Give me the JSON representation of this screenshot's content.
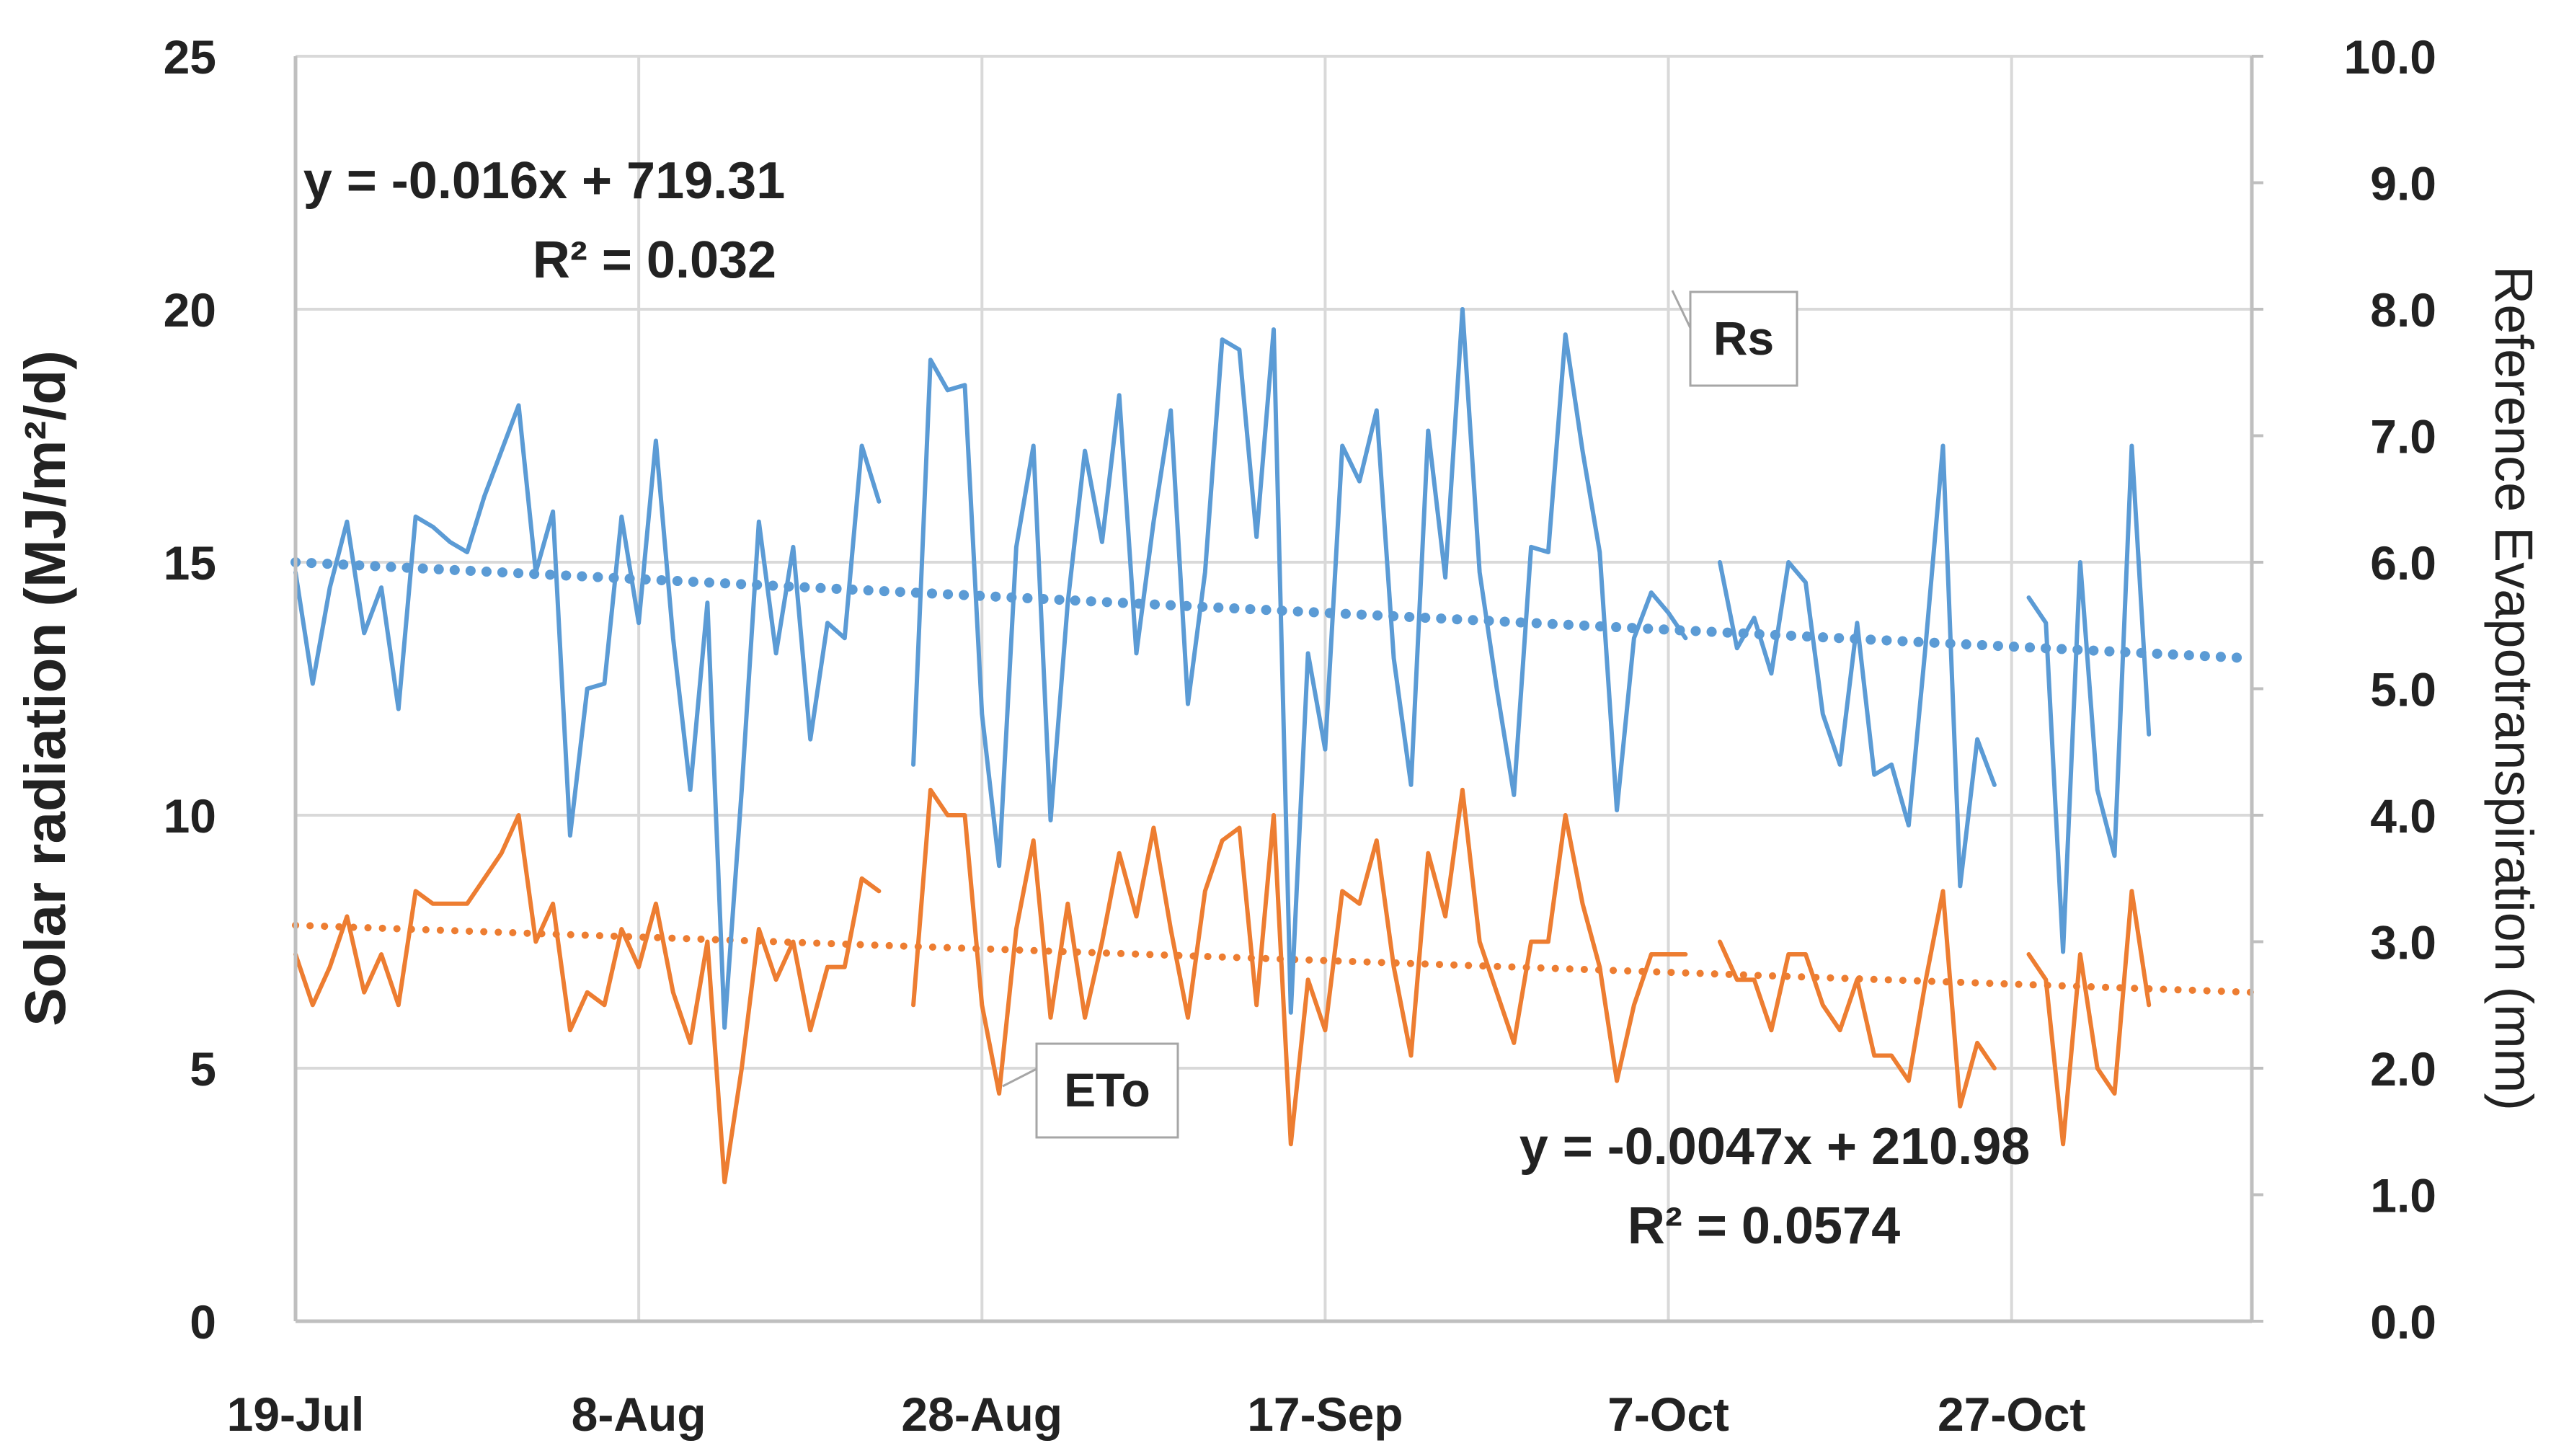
{
  "chart_data": {
    "type": "line",
    "x_ticks": [
      "19-Jul",
      "8-Aug",
      "28-Aug",
      "17-Sep",
      "7-Oct",
      "27-Oct"
    ],
    "x_range_days": [
      0,
      114
    ],
    "y_left": {
      "label": "Solar radiation (MJ/m²/d)",
      "range": [
        0,
        25
      ],
      "ticks": [
        "0",
        "5",
        "10",
        "15",
        "20",
        "25"
      ]
    },
    "y_right": {
      "label": "Reference Evapotranspiration (mm)",
      "range": [
        0,
        10
      ],
      "ticks": [
        "0.0",
        "1.0",
        "2.0",
        "3.0",
        "4.0",
        "5.0",
        "6.0",
        "7.0",
        "8.0",
        "9.0",
        "10.0"
      ]
    },
    "grid": true,
    "series": [
      {
        "name": "Rs",
        "axis": "left",
        "color": "#5b9bd5",
        "points": [
          [
            0,
            14.8
          ],
          [
            1,
            12.6
          ],
          [
            2,
            14.5
          ],
          [
            3,
            15.8
          ],
          [
            4,
            13.6
          ],
          [
            5,
            14.5
          ],
          [
            6,
            12.1
          ],
          [
            7,
            15.9
          ],
          [
            8,
            15.7
          ],
          [
            9,
            15.4
          ],
          [
            10,
            15.2
          ],
          [
            11,
            16.3
          ],
          [
            12,
            17.2
          ],
          [
            13,
            18.1
          ],
          [
            14,
            14.8
          ],
          [
            15,
            16.0
          ],
          [
            16,
            9.6
          ],
          [
            17,
            12.5
          ],
          [
            18,
            12.6
          ],
          [
            19,
            15.9
          ],
          [
            20,
            13.8
          ],
          [
            21,
            17.4
          ],
          [
            22,
            13.5
          ],
          [
            23,
            10.5
          ],
          [
            24,
            14.2
          ],
          [
            25,
            5.8
          ],
          [
            26,
            10.5
          ],
          [
            27,
            15.8
          ],
          [
            28,
            13.2
          ],
          [
            29,
            15.3
          ],
          [
            30,
            11.5
          ],
          [
            31,
            13.8
          ],
          [
            32,
            13.5
          ],
          [
            33,
            17.3
          ],
          [
            34,
            16.2
          ],
          null,
          [
            36,
            11.0
          ],
          [
            37,
            19.0
          ],
          [
            38,
            18.4
          ],
          [
            39,
            18.5
          ],
          [
            40,
            12.0
          ],
          [
            41,
            9.0
          ],
          [
            42,
            15.3
          ],
          [
            43,
            17.3
          ],
          [
            44,
            9.9
          ],
          [
            45,
            14.2
          ],
          [
            46,
            17.2
          ],
          [
            47,
            15.4
          ],
          [
            48,
            18.3
          ],
          [
            49,
            13.2
          ],
          [
            50,
            15.8
          ],
          [
            51,
            18.0
          ],
          [
            52,
            12.2
          ],
          [
            53,
            14.8
          ],
          [
            54,
            19.4
          ],
          [
            55,
            19.2
          ],
          [
            56,
            15.5
          ],
          [
            57,
            19.6
          ],
          [
            58,
            6.1
          ],
          [
            59,
            13.2
          ],
          [
            60,
            11.3
          ],
          [
            61,
            17.3
          ],
          [
            62,
            16.6
          ],
          [
            63,
            18.0
          ],
          [
            64,
            13.1
          ],
          [
            65,
            10.6
          ],
          [
            66,
            17.6
          ],
          [
            67,
            14.7
          ],
          [
            68,
            20.0
          ],
          [
            69,
            14.8
          ],
          [
            70,
            12.5
          ],
          [
            71,
            10.4
          ],
          [
            72,
            15.3
          ],
          [
            73,
            15.2
          ],
          [
            74,
            19.5
          ],
          [
            75,
            17.2
          ],
          [
            76,
            15.2
          ],
          [
            77,
            10.1
          ],
          [
            78,
            13.5
          ],
          [
            79,
            14.4
          ],
          [
            80,
            14.0
          ],
          [
            81,
            13.5
          ],
          null,
          [
            83,
            15.0
          ],
          [
            84,
            13.3
          ],
          [
            85,
            13.9
          ],
          [
            86,
            12.8
          ],
          [
            87,
            15.0
          ],
          [
            88,
            14.6
          ],
          [
            89,
            12.0
          ],
          [
            90,
            11.0
          ],
          [
            91,
            13.8
          ],
          [
            92,
            10.8
          ],
          [
            93,
            11.0
          ],
          [
            94,
            9.8
          ],
          [
            95,
            13.4
          ],
          [
            96,
            17.3
          ],
          [
            97,
            8.6
          ],
          [
            98,
            11.5
          ],
          [
            99,
            10.6
          ],
          null,
          [
            101,
            14.3
          ],
          [
            102,
            13.8
          ],
          [
            103,
            7.3
          ],
          [
            104,
            15.0
          ],
          [
            105,
            10.5
          ],
          [
            106,
            9.2
          ],
          [
            107,
            17.3
          ],
          [
            108,
            11.6
          ]
        ]
      },
      {
        "name": "ETo",
        "axis": "right",
        "color": "#ed7d31",
        "points": [
          [
            0,
            2.9
          ],
          [
            1,
            2.5
          ],
          [
            2,
            2.8
          ],
          [
            3,
            3.2
          ],
          [
            4,
            2.6
          ],
          [
            5,
            2.9
          ],
          [
            6,
            2.5
          ],
          [
            7,
            3.4
          ],
          [
            8,
            3.3
          ],
          [
            9,
            3.3
          ],
          [
            10,
            3.3
          ],
          [
            11,
            3.5
          ],
          [
            12,
            3.7
          ],
          [
            13,
            4.0
          ],
          [
            14,
            3.0
          ],
          [
            15,
            3.3
          ],
          [
            16,
            2.3
          ],
          [
            17,
            2.6
          ],
          [
            18,
            2.5
          ],
          [
            19,
            3.1
          ],
          [
            20,
            2.8
          ],
          [
            21,
            3.3
          ],
          [
            22,
            2.6
          ],
          [
            23,
            2.2
          ],
          [
            24,
            3.0
          ],
          [
            25,
            1.1
          ],
          [
            26,
            2.0
          ],
          [
            27,
            3.1
          ],
          [
            28,
            2.7
          ],
          [
            29,
            3.0
          ],
          [
            30,
            2.3
          ],
          [
            31,
            2.8
          ],
          [
            32,
            2.8
          ],
          [
            33,
            3.5
          ],
          [
            34,
            3.4
          ],
          null,
          [
            36,
            2.5
          ],
          [
            37,
            4.2
          ],
          [
            38,
            4.0
          ],
          [
            39,
            4.0
          ],
          [
            40,
            2.5
          ],
          [
            41,
            1.8
          ],
          [
            42,
            3.1
          ],
          [
            43,
            3.8
          ],
          [
            44,
            2.4
          ],
          [
            45,
            3.3
          ],
          [
            46,
            2.4
          ],
          [
            47,
            3.0
          ],
          [
            48,
            3.7
          ],
          [
            49,
            3.2
          ],
          [
            50,
            3.9
          ],
          [
            51,
            3.1
          ],
          [
            52,
            2.4
          ],
          [
            53,
            3.4
          ],
          [
            54,
            3.8
          ],
          [
            55,
            3.9
          ],
          [
            56,
            2.5
          ],
          [
            57,
            4.0
          ],
          [
            58,
            1.4
          ],
          [
            59,
            2.7
          ],
          [
            60,
            2.3
          ],
          [
            61,
            3.4
          ],
          [
            62,
            3.3
          ],
          [
            63,
            3.8
          ],
          [
            64,
            2.8
          ],
          [
            65,
            2.1
          ],
          [
            66,
            3.7
          ],
          [
            67,
            3.2
          ],
          [
            68,
            4.2
          ],
          [
            69,
            3.0
          ],
          [
            70,
            2.6
          ],
          [
            71,
            2.2
          ],
          [
            72,
            3.0
          ],
          [
            73,
            3.0
          ],
          [
            74,
            4.0
          ],
          [
            75,
            3.3
          ],
          [
            76,
            2.8
          ],
          [
            77,
            1.9
          ],
          [
            78,
            2.5
          ],
          [
            79,
            2.9
          ],
          [
            80,
            2.9
          ],
          [
            81,
            2.9
          ],
          null,
          [
            83,
            3.0
          ],
          [
            84,
            2.7
          ],
          [
            85,
            2.7
          ],
          [
            86,
            2.3
          ],
          [
            87,
            2.9
          ],
          [
            88,
            2.9
          ],
          [
            89,
            2.5
          ],
          [
            90,
            2.3
          ],
          [
            91,
            2.7
          ],
          [
            92,
            2.1
          ],
          [
            93,
            2.1
          ],
          [
            94,
            1.9
          ],
          [
            95,
            2.7
          ],
          [
            96,
            3.4
          ],
          [
            97,
            1.7
          ],
          [
            98,
            2.2
          ],
          [
            99,
            2.0
          ],
          null,
          [
            101,
            2.9
          ],
          [
            102,
            2.7
          ],
          [
            103,
            1.4
          ],
          [
            104,
            2.9
          ],
          [
            105,
            2.0
          ],
          [
            106,
            1.8
          ],
          [
            107,
            3.4
          ],
          [
            108,
            2.5
          ]
        ]
      }
    ],
    "trendlines": [
      {
        "series": "Rs",
        "axis": "left",
        "color": "#5b9bd5",
        "equation": "y = -0.016x + 719.31",
        "r2": "R² = 0.032",
        "points": [
          [
            0,
            15.0
          ],
          [
            114,
            13.1
          ]
        ]
      },
      {
        "series": "ETo",
        "axis": "right",
        "color": "#ed7d31",
        "equation": "y = -0.0047x + 210.98",
        "r2": "R² = 0.0574",
        "points": [
          [
            0,
            3.13
          ],
          [
            114,
            2.6
          ]
        ]
      }
    ],
    "callouts": {
      "rs": "Rs",
      "eto": "ETo"
    }
  }
}
